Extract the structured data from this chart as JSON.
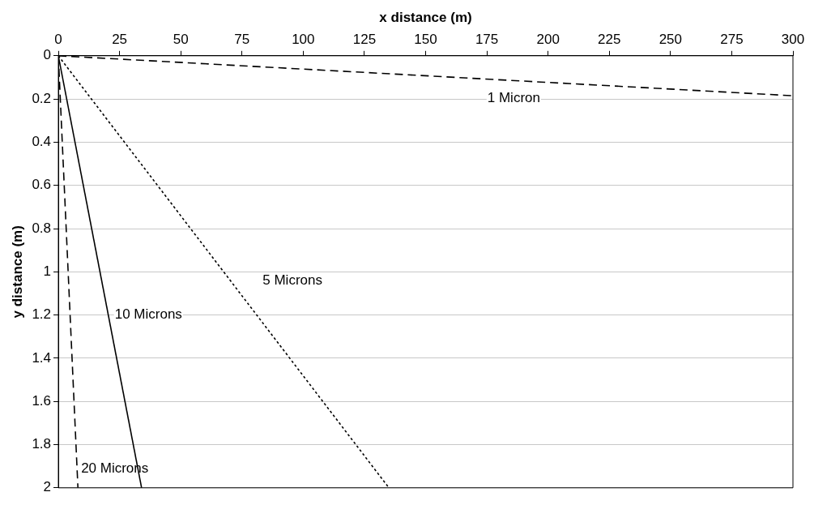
{
  "chart_data": {
    "type": "line",
    "xlabel": "x distance (m)",
    "ylabel": "y distance (m)",
    "xlim": [
      0,
      300
    ],
    "xticks": [
      0,
      25,
      50,
      75,
      100,
      125,
      150,
      175,
      200,
      225,
      250,
      275,
      300
    ],
    "ylim": [
      2,
      0
    ],
    "yticks": [
      0,
      0.2,
      0.4,
      0.6,
      0.8,
      1,
      1.2,
      1.4,
      1.6,
      1.8,
      2
    ],
    "grid": "y",
    "legend": false,
    "marker": "none",
    "series": [
      {
        "name": "1 Micron",
        "color": "#000000",
        "x": [
          0,
          300
        ],
        "values": [
          0,
          0.185
        ],
        "line_style": "dashed"
      },
      {
        "name": "5 Microns",
        "color": "#000000",
        "x": [
          0,
          135
        ],
        "values": [
          0,
          2
        ],
        "line_style": "dotted"
      },
      {
        "name": "10 Microns",
        "color": "#000000",
        "x": [
          0,
          34
        ],
        "values": [
          0,
          2
        ],
        "line_style": "solid"
      },
      {
        "name": "20 Microns",
        "color": "#000000",
        "x": [
          0,
          8
        ],
        "values": [
          0,
          2
        ],
        "line_style": "dashed"
      }
    ]
  }
}
